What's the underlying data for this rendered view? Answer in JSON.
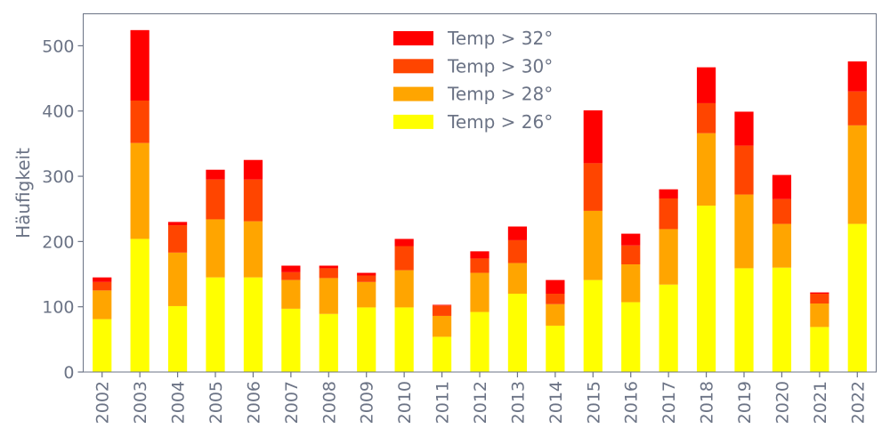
{
  "chart_data": {
    "type": "bar",
    "stacked": true,
    "title": "",
    "xlabel": "",
    "ylabel": "Häufigkeit",
    "ylim": [
      0,
      549
    ],
    "yticks": [
      0,
      100,
      200,
      300,
      400,
      500
    ],
    "grid": false,
    "legend_position": "top-center",
    "categories": [
      "2002",
      "2003",
      "2004",
      "2005",
      "2006",
      "2007",
      "2008",
      "2009",
      "2010",
      "2011",
      "2012",
      "2013",
      "2014",
      "2015",
      "2016",
      "2017",
      "2018",
      "2019",
      "2020",
      "2021",
      "2022"
    ],
    "series": [
      {
        "name": "Temp > 26°",
        "color": "#ffff00",
        "values": [
          81,
          204,
          101,
          145,
          145,
          97,
          89,
          99,
          99,
          54,
          92,
          120,
          71,
          141,
          107,
          134,
          255,
          159,
          160,
          69,
          227
        ]
      },
      {
        "name": "Temp > 28°",
        "color": "#ffa500",
        "values": [
          44,
          147,
          82,
          89,
          86,
          44,
          55,
          39,
          57,
          32,
          60,
          47,
          33,
          106,
          58,
          85,
          111,
          113,
          67,
          36,
          151
        ]
      },
      {
        "name": "Temp > 30°",
        "color": "#ff4500",
        "values": [
          13,
          65,
          42,
          61,
          64,
          12,
          15,
          10,
          37,
          16,
          22,
          35,
          16,
          73,
          29,
          47,
          46,
          75,
          38,
          15,
          52
        ]
      },
      {
        "name": "Temp > 32°",
        "color": "#ff0000",
        "values": [
          7,
          108,
          5,
          15,
          30,
          10,
          4,
          4,
          11,
          1,
          11,
          21,
          21,
          81,
          18,
          14,
          55,
          52,
          37,
          2,
          46
        ]
      }
    ],
    "legend_order": [
      "Temp > 32°",
      "Temp > 30°",
      "Temp > 28°",
      "Temp > 26°"
    ]
  }
}
